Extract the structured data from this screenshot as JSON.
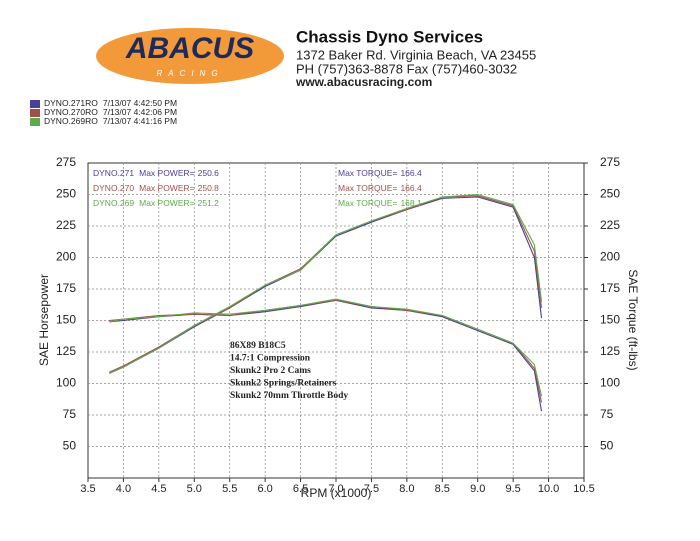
{
  "header": {
    "logo": "ABACUS",
    "logo_sub": "RACING",
    "title": "Chassis Dyno Services",
    "address": "1372 Baker Rd. Virginia Beach, VA 23455",
    "phone": "PH (757)363-8878 Fax (757)460-3032",
    "web": "www.abacusracing.com"
  },
  "chart_data": {
    "type": "line",
    "xlabel": "RPM (x1000)",
    "ylabel": "SAE Horsepower",
    "y2label": "SAE Torque (ft-lbs)",
    "power_label": "Max POWER=",
    "torque_label": "Max TORQUE=",
    "xlim": [
      3.5,
      10.5
    ],
    "xticks": [
      3.5,
      {
        "value": 4,
        "label": "4.0"
      },
      4.5,
      {
        "value": 5,
        "label": "5.0"
      },
      5.5,
      {
        "value": 6,
        "label": "6.0"
      },
      6.5,
      {
        "value": 7,
        "label": "7.0"
      },
      7.5,
      {
        "value": 8,
        "label": "8.0"
      },
      8.5,
      {
        "value": 9,
        "label": "9.0"
      },
      9.5,
      {
        "value": 10,
        "label": "10.0"
      },
      10.5
    ],
    "ylim": [
      25,
      275
    ],
    "yticks": [
      50,
      75,
      100,
      125,
      150,
      175,
      200,
      225,
      250,
      275
    ],
    "y2lim": [
      25,
      275
    ],
    "y2ticks": [
      50,
      75,
      100,
      125,
      150,
      175,
      200,
      225,
      250,
      275
    ],
    "grid": true,
    "x": [
      3.8,
      4.0,
      4.5,
      5.0,
      5.5,
      6.0,
      6.5,
      7.0,
      7.5,
      8.0,
      8.5,
      9.0,
      9.5,
      9.8,
      9.9
    ],
    "series": [
      {
        "name": "DYNO.271RO",
        "label": "DYNO.271",
        "date": "7/13/07 4:42:50 PM",
        "color": "#4a3f9a",
        "max_power": 250.6,
        "max_torque": 166.4,
        "values": [
          108,
          113,
          128,
          145,
          160,
          177,
          190,
          217,
          228,
          238,
          247,
          248,
          240,
          200,
          152
        ],
        "torque": [
          149,
          150,
          153,
          155,
          154,
          157,
          161,
          166,
          160,
          158,
          153,
          142,
          131,
          110,
          78
        ]
      },
      {
        "name": "DYNO.270RO",
        "label": "DYNO.270",
        "date": "7/13/07 4:42:06 PM",
        "color": "#a0504a",
        "max_power": 250.8,
        "max_torque": 166.4,
        "values": [
          109,
          114,
          129,
          146,
          160,
          178,
          191,
          218,
          229,
          238,
          248,
          249,
          241,
          205,
          160
        ],
        "torque": [
          150,
          151,
          154,
          155,
          154,
          158,
          162,
          166,
          161,
          158,
          154,
          143,
          132,
          112,
          85
        ]
      },
      {
        "name": "DYNO.269RO",
        "label": "DYNO.269",
        "date": "7/13/07 4:41:16 PM",
        "color": "#5eaa48",
        "max_power": 251.2,
        "max_torque": 168.1,
        "values": [
          108,
          113,
          128,
          146,
          161,
          178,
          190,
          218,
          229,
          239,
          248,
          250,
          242,
          210,
          165
        ],
        "torque": [
          149,
          151,
          153,
          156,
          155,
          158,
          162,
          167,
          161,
          159,
          154,
          143,
          132,
          115,
          90
        ]
      }
    ],
    "annotations": [
      "86X89 B18C5",
      "14.7:1 Compression",
      "Skunk2 Pro 2 Cams",
      "Skunk2 Springs/Retainers",
      "Skunk2 70mm Throttle Body"
    ]
  }
}
